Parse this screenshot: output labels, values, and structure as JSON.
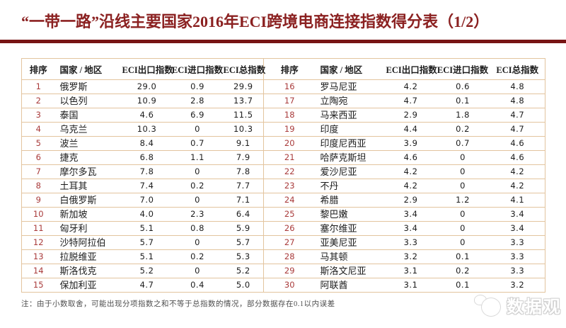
{
  "title": "“一带一路”沿线主要国家2016年ECI跨境电商连接指数得分表（1/2）",
  "note": "注：由于小数取舍，可能出现分项指数之和不等于总指数的情况，部分数据存在0.1以内误差",
  "watermark": {
    "text": "数据观"
  },
  "colors": {
    "title-red": "#8b2121",
    "rule-red": "#771414",
    "rank-red": "#a93b3b",
    "border-tan": "#e3c49e",
    "text-dark": "#1c1c1c",
    "note-gray": "#4d4d4d"
  },
  "chart_data": {
    "type": "table",
    "title": "“一带一路”沿线主要国家2016年ECI跨境电商连接指数得分表（1/2）",
    "columns": [
      "排序",
      "国家 / 地区",
      "ECI出口指数",
      "ECI进口指数",
      "ECI总指数"
    ],
    "layout": "two side-by-side halves, ranks 1-15 left and 16-30 right",
    "rows": [
      [
        "1",
        "俄罗斯",
        "29.0",
        "0.9",
        "29.9"
      ],
      [
        "2",
        "以色列",
        "10.9",
        "2.8",
        "13.7"
      ],
      [
        "3",
        "泰国",
        "4.6",
        "6.9",
        "11.5"
      ],
      [
        "4",
        "乌克兰",
        "10.3",
        "0",
        "10.3"
      ],
      [
        "5",
        "波兰",
        "8.4",
        "0.7",
        "9.1"
      ],
      [
        "6",
        "捷克",
        "6.8",
        "1.1",
        "7.9"
      ],
      [
        "7",
        "摩尔多瓦",
        "7.8",
        "0",
        "7.8"
      ],
      [
        "8",
        "土耳其",
        "7.4",
        "0.2",
        "7.7"
      ],
      [
        "9",
        "白俄罗斯",
        "7.0",
        "0",
        "7.1"
      ],
      [
        "10",
        "新加坡",
        "4.0",
        "2.3",
        "6.4"
      ],
      [
        "11",
        "匈牙利",
        "5.1",
        "0.8",
        "5.9"
      ],
      [
        "12",
        "沙特阿拉伯",
        "5.7",
        "0",
        "5.7"
      ],
      [
        "13",
        "拉脱维亚",
        "5.1",
        "0.2",
        "5.3"
      ],
      [
        "14",
        "斯洛伐克",
        "5.2",
        "0",
        "5.2"
      ],
      [
        "15",
        "保加利亚",
        "4.7",
        "0.4",
        "5.0"
      ],
      [
        "16",
        "罗马尼亚",
        "4.2",
        "0.6",
        "4.8"
      ],
      [
        "17",
        "立陶宛",
        "4.7",
        "0.1",
        "4.8"
      ],
      [
        "18",
        "马来西亚",
        "2.9",
        "1.8",
        "4.7"
      ],
      [
        "19",
        "印度",
        "4.4",
        "0.2",
        "4.7"
      ],
      [
        "20",
        "印度尼西亚",
        "3.9",
        "0.7",
        "4.6"
      ],
      [
        "21",
        "哈萨克斯坦",
        "4.6",
        "0",
        "4.6"
      ],
      [
        "22",
        "爱沙尼亚",
        "4.2",
        "0",
        "4.2"
      ],
      [
        "23",
        "不丹",
        "4.2",
        "0",
        "4.2"
      ],
      [
        "24",
        "希腊",
        "2.9",
        "1.2",
        "4.1"
      ],
      [
        "25",
        "黎巴嫩",
        "3.4",
        "0",
        "3.4"
      ],
      [
        "26",
        "塞尔维亚",
        "3.4",
        "0",
        "3.4"
      ],
      [
        "27",
        "亚美尼亚",
        "3.3",
        "0",
        "3.3"
      ],
      [
        "28",
        "马其顿",
        "3.2",
        "0.1",
        "3.3"
      ],
      [
        "29",
        "斯洛文尼亚",
        "3.1",
        "0.2",
        "3.3"
      ],
      [
        "30",
        "阿联酋",
        "3.1",
        "0.1",
        "3.2"
      ]
    ]
  }
}
